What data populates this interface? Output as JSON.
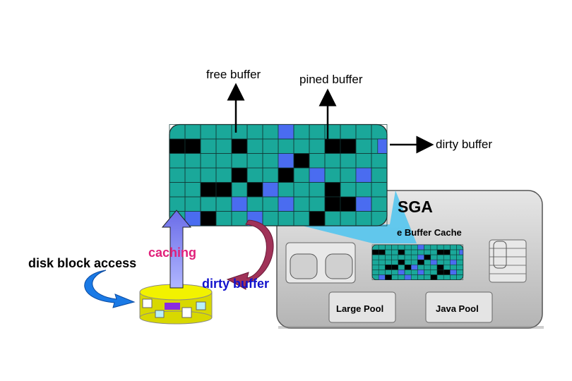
{
  "labels": {
    "free_buffer": "free buffer",
    "pined_buffer": "pined buffer",
    "dirty_buffer_right": "dirty buffer",
    "sga": "SGA",
    "buffer_cache": "e Buffer Cache",
    "caching": "caching",
    "disk_block_access": "disk block access",
    "dirty_buffer_bottom": "dirty buffer",
    "large_pool": "Large Pool",
    "java_pool": "Java Pool"
  },
  "colors": {
    "teal_cell": "#1aa89a",
    "black_cell": "#000000",
    "blue_cell": "#4a6cf0",
    "caching_text": "#e0207a",
    "dirty_text": "#1111cc",
    "sga_panel": "#c8c8c8",
    "disk_yellow": "#f0f000"
  },
  "buffer_grid": {
    "cols": 14,
    "rows": 6,
    "black_cells": [
      [
        0,
        0
      ],
      [
        1,
        0
      ],
      [
        4,
        0
      ],
      [
        10,
        0
      ],
      [
        11,
        0
      ],
      [
        8,
        1
      ],
      [
        4,
        2
      ],
      [
        7,
        2
      ],
      [
        2,
        3
      ],
      [
        3,
        3
      ],
      [
        5,
        3
      ],
      [
        10,
        3
      ],
      [
        10,
        4
      ],
      [
        11,
        4
      ],
      [
        2,
        5
      ],
      [
        9,
        5
      ]
    ],
    "blue_cells": [
      [
        7,
        -1
      ],
      [
        14,
        0
      ],
      [
        7,
        1
      ],
      [
        9,
        2
      ],
      [
        12,
        2
      ],
      [
        6,
        3
      ],
      [
        4,
        4
      ],
      [
        7,
        4
      ],
      [
        12,
        4
      ],
      [
        1,
        5
      ],
      [
        5,
        5
      ]
    ]
  }
}
